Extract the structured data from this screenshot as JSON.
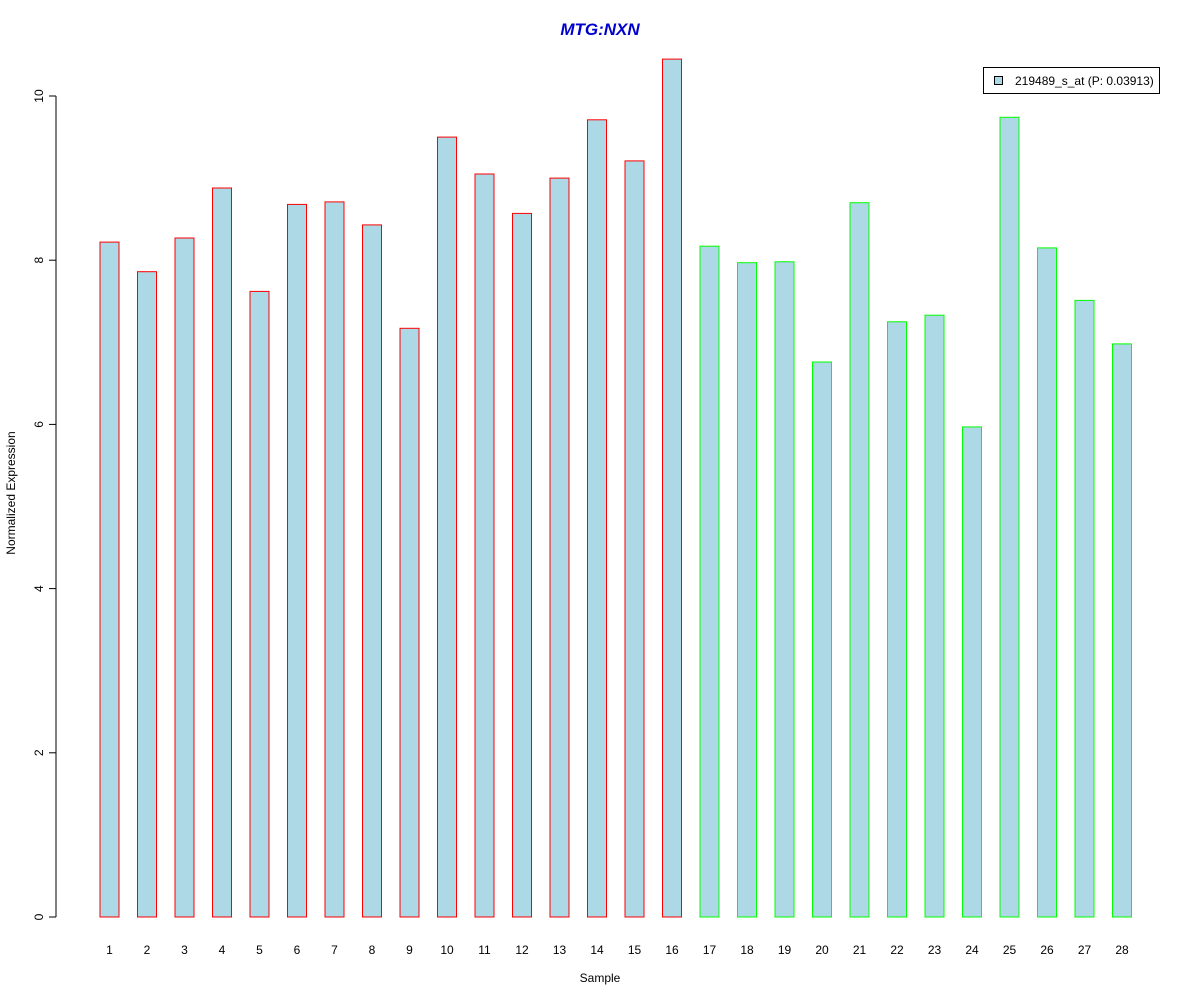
{
  "chart_data": {
    "type": "bar",
    "title": "MTG:NXN",
    "xlabel": "Sample",
    "ylabel": "Normalized Expression",
    "categories": [
      "1",
      "2",
      "3",
      "4",
      "5",
      "6",
      "7",
      "8",
      "9",
      "10",
      "11",
      "12",
      "13",
      "14",
      "15",
      "16",
      "17",
      "18",
      "19",
      "20",
      "21",
      "22",
      "23",
      "24",
      "25",
      "26",
      "27",
      "28"
    ],
    "series": [
      {
        "name": "219489_s_at (P: 0.03913)",
        "values": [
          8.22,
          7.86,
          8.27,
          8.88,
          7.62,
          8.68,
          8.71,
          8.43,
          7.17,
          9.5,
          9.05,
          8.57,
          9.0,
          9.71,
          9.21,
          10.45,
          8.17,
          7.97,
          7.98,
          6.76,
          8.7,
          7.25,
          7.33,
          5.97,
          9.74,
          8.15,
          7.51,
          6.98
        ]
      }
    ],
    "groups": [
      {
        "samples": [
          1,
          16
        ],
        "border_color": "#ff0000"
      },
      {
        "samples": [
          17,
          28
        ],
        "border_color": "#00ff00"
      }
    ],
    "bar_fill": "#add8e6",
    "title_color": "#0000cc",
    "yticks": [
      0,
      2,
      4,
      6,
      8,
      10
    ],
    "ylim": [
      0,
      10.45
    ],
    "grid": false,
    "legend_position": "top-right"
  }
}
